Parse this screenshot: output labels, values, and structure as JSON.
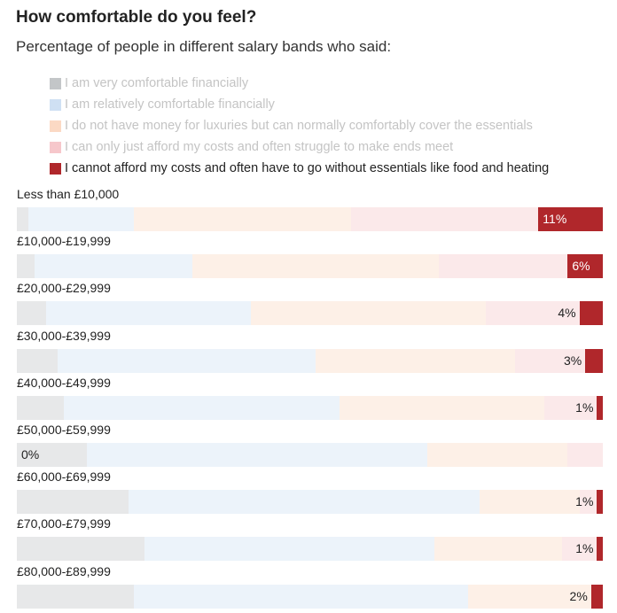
{
  "chart_data": {
    "type": "bar",
    "orientation": "horizontal",
    "stacked": true,
    "title": "How comfortable do you feel?",
    "subtitle": "Percentage of people in different salary bands who said:",
    "highlighted_series": 4,
    "categories": [
      "Less than £10,000",
      "£10,000-£19,999",
      "£20,000-£29,999",
      "£30,000-£39,999",
      "£40,000-£49,999",
      "£50,000-£59,999",
      "£60,000-£69,999",
      "£70,000-£79,999",
      "£80,000-£89,999"
    ],
    "series": [
      {
        "name": "I am very comfortable financially",
        "color": "#c3c6c8",
        "values": [
          2,
          3,
          5,
          7,
          8,
          12,
          19,
          22,
          20
        ]
      },
      {
        "name": "I am relatively comfortable financially",
        "color": "#cfe0f3",
        "values": [
          18,
          27,
          35,
          44,
          47,
          58,
          60,
          50,
          57
        ]
      },
      {
        "name": "I do not have money for luxuries but can normally comfortably cover the essentials",
        "color": "#fbd9c4",
        "values": [
          37,
          42,
          40,
          34,
          35,
          24,
          17,
          22,
          21
        ]
      },
      {
        "name": "I can only just afford my costs and often struggle to make ends meet",
        "color": "#f6c7cb",
        "values": [
          32,
          22,
          16,
          12,
          9,
          6,
          3,
          6,
          0
        ]
      },
      {
        "name": "I cannot afford my costs and often have to go without essentials like food and heating",
        "color": "#b0272b",
        "values": [
          11,
          6,
          4,
          3,
          1,
          0,
          1,
          1,
          2
        ]
      }
    ],
    "data_labels": [
      "11%",
      "6%",
      "4%",
      "3%",
      "1%",
      "0%",
      "1%",
      "1%",
      "2%"
    ],
    "xlim": [
      0,
      100
    ],
    "legend_position": "top-left"
  }
}
